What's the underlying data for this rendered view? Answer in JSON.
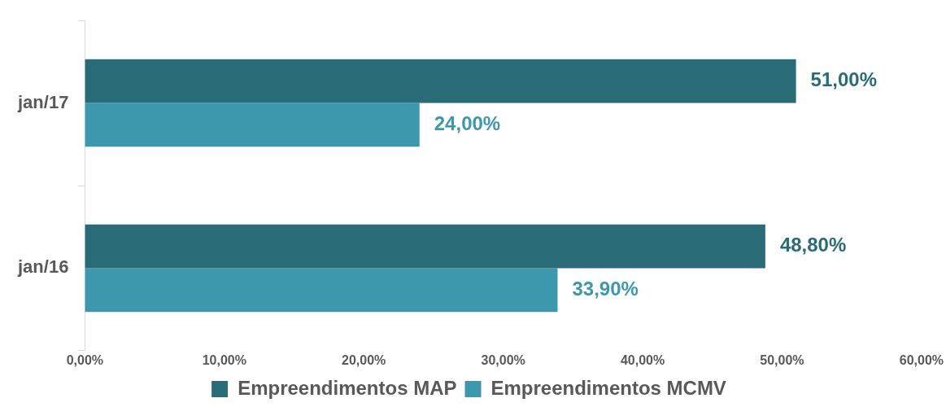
{
  "chart_data": {
    "type": "bar",
    "orientation": "horizontal",
    "categories": [
      "jan/17",
      "jan/16"
    ],
    "series": [
      {
        "name": "Empreendimentos MAP",
        "color": "#2a6b78",
        "values": [
          51.0,
          48.8
        ],
        "value_labels": [
          "51,00%",
          "48,80%"
        ]
      },
      {
        "name": "Empreendimentos MCMV",
        "color": "#3d98ae",
        "values": [
          24.0,
          33.9
        ],
        "value_labels": [
          "24,00%",
          "33,90%"
        ]
      }
    ],
    "xlim": [
      0,
      60
    ],
    "xticks": [
      {
        "value": 0,
        "label": "0,00%"
      },
      {
        "value": 10,
        "label": "10,00%"
      },
      {
        "value": 20,
        "label": "20,00%"
      },
      {
        "value": 30,
        "label": "30,00%"
      },
      {
        "value": 40,
        "label": "40,00%"
      },
      {
        "value": 50,
        "label": "50,00%"
      },
      {
        "value": 60,
        "label": "60,00%"
      }
    ],
    "legend": "bottom"
  }
}
